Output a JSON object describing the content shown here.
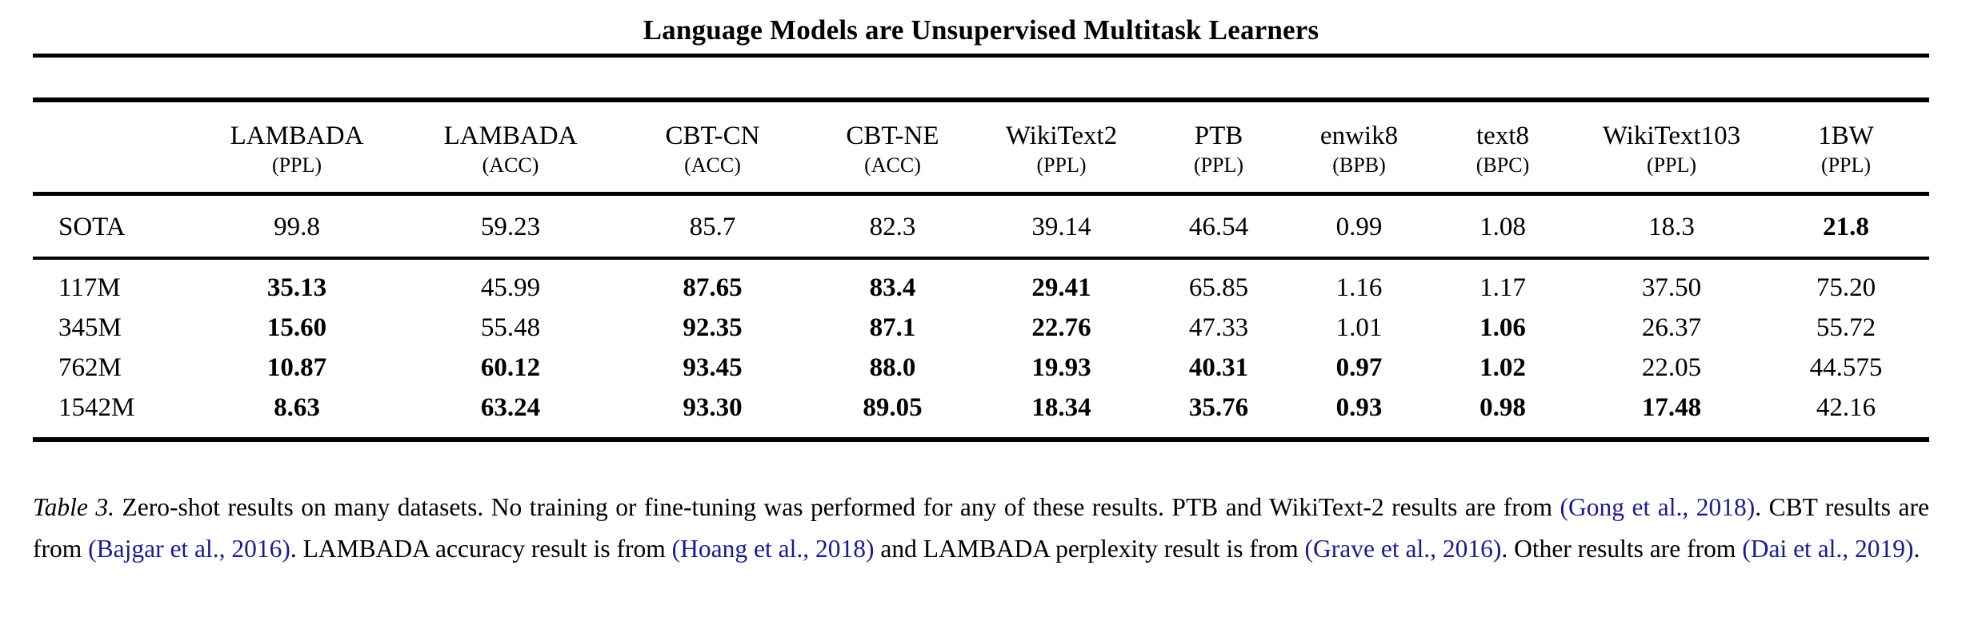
{
  "page": {
    "title": "Language Models are Unsupervised Multitask Learners"
  },
  "table": {
    "columns": [
      {
        "dataset": "LAMBADA",
        "metric": "(PPL)"
      },
      {
        "dataset": "LAMBADA",
        "metric": "(ACC)"
      },
      {
        "dataset": "CBT-CN",
        "metric": "(ACC)"
      },
      {
        "dataset": "CBT-NE",
        "metric": "(ACC)"
      },
      {
        "dataset": "WikiText2",
        "metric": "(PPL)"
      },
      {
        "dataset": "PTB",
        "metric": "(PPL)"
      },
      {
        "dataset": "enwik8",
        "metric": "(BPB)"
      },
      {
        "dataset": "text8",
        "metric": "(BPC)"
      },
      {
        "dataset": "WikiText103",
        "metric": "(PPL)"
      },
      {
        "dataset": "1BW",
        "metric": "(PPL)"
      }
    ],
    "sota_row": {
      "label": "SOTA",
      "cells": [
        {
          "text": "99.8",
          "bold": false
        },
        {
          "text": "59.23",
          "bold": false
        },
        {
          "text": "85.7",
          "bold": false
        },
        {
          "text": "82.3",
          "bold": false
        },
        {
          "text": "39.14",
          "bold": false
        },
        {
          "text": "46.54",
          "bold": false
        },
        {
          "text": "0.99",
          "bold": false
        },
        {
          "text": "1.08",
          "bold": false
        },
        {
          "text": "18.3",
          "bold": false
        },
        {
          "text": "21.8",
          "bold": true
        }
      ]
    },
    "model_rows": [
      {
        "label": "117M",
        "cells": [
          {
            "text": "35.13",
            "bold": true
          },
          {
            "text": "45.99",
            "bold": false
          },
          {
            "text": "87.65",
            "bold": true
          },
          {
            "text": "83.4",
            "bold": true
          },
          {
            "text": "29.41",
            "bold": true
          },
          {
            "text": "65.85",
            "bold": false
          },
          {
            "text": "1.16",
            "bold": false
          },
          {
            "text": "1.17",
            "bold": false
          },
          {
            "text": "37.50",
            "bold": false
          },
          {
            "text": "75.20",
            "bold": false
          }
        ]
      },
      {
        "label": "345M",
        "cells": [
          {
            "text": "15.60",
            "bold": true
          },
          {
            "text": "55.48",
            "bold": false
          },
          {
            "text": "92.35",
            "bold": true
          },
          {
            "text": "87.1",
            "bold": true
          },
          {
            "text": "22.76",
            "bold": true
          },
          {
            "text": "47.33",
            "bold": false
          },
          {
            "text": "1.01",
            "bold": false
          },
          {
            "text": "1.06",
            "bold": true
          },
          {
            "text": "26.37",
            "bold": false
          },
          {
            "text": "55.72",
            "bold": false
          }
        ]
      },
      {
        "label": "762M",
        "cells": [
          {
            "text": "10.87",
            "bold": true
          },
          {
            "text": "60.12",
            "bold": true
          },
          {
            "text": "93.45",
            "bold": true
          },
          {
            "text": "88.0",
            "bold": true
          },
          {
            "text": "19.93",
            "bold": true
          },
          {
            "text": "40.31",
            "bold": true
          },
          {
            "text": "0.97",
            "bold": true
          },
          {
            "text": "1.02",
            "bold": true
          },
          {
            "text": "22.05",
            "bold": false
          },
          {
            "text": "44.575",
            "bold": false
          }
        ]
      },
      {
        "label": "1542M",
        "cells": [
          {
            "text": "8.63",
            "bold": true
          },
          {
            "text": "63.24",
            "bold": true
          },
          {
            "text": "93.30",
            "bold": true
          },
          {
            "text": "89.05",
            "bold": true
          },
          {
            "text": "18.34",
            "bold": true
          },
          {
            "text": "35.76",
            "bold": true
          },
          {
            "text": "0.93",
            "bold": true
          },
          {
            "text": "0.98",
            "bold": true
          },
          {
            "text": "17.48",
            "bold": true
          },
          {
            "text": "42.16",
            "bold": false
          }
        ]
      }
    ]
  },
  "caption": {
    "link_color": "#1b1b8f",
    "segments": [
      {
        "text": "Table 3.",
        "style": "italic"
      },
      {
        "text": " Zero-shot results on many datasets. No training or fine-tuning was performed for any of these results. PTB and WikiText-2 results are from ",
        "style": "plain"
      },
      {
        "text": "(Gong et al., 2018)",
        "style": "link"
      },
      {
        "text": ". CBT results are from ",
        "style": "plain"
      },
      {
        "text": "(Bajgar et al., 2016)",
        "style": "link"
      },
      {
        "text": ". LAMBADA accuracy result is from ",
        "style": "plain"
      },
      {
        "text": "(Hoang et al., 2018)",
        "style": "link"
      },
      {
        "text": " and LAMBADA perplexity result is from ",
        "style": "plain"
      },
      {
        "text": "(Grave et al., 2016)",
        "style": "link"
      },
      {
        "text": ". Other results are from ",
        "style": "plain"
      },
      {
        "text": "(Dai et al., 2019)",
        "style": "link"
      },
      {
        "text": ".",
        "style": "plain"
      }
    ]
  }
}
